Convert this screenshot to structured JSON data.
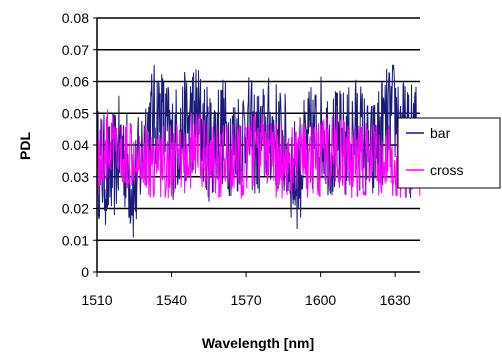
{
  "chart_data": {
    "type": "line",
    "title": "",
    "xlabel": "Wavelength [nm]",
    "ylabel": "PDL",
    "xlim": [
      1510,
      1640
    ],
    "ylim": [
      0,
      0.08
    ],
    "x_ticks": [
      "1510",
      "1540",
      "1570",
      "1600",
      "1630"
    ],
    "y_ticks": [
      "0",
      "0.01",
      "0.02",
      "0.03",
      "0.04",
      "0.05",
      "0.06",
      "0.07",
      "0.08"
    ],
    "grid": "horizontal",
    "legend_position": "right",
    "series": [
      {
        "name": "bar",
        "color": "#1a1a7a",
        "x": [
          1510,
          1515,
          1520,
          1525,
          1530,
          1535,
          1540,
          1545,
          1550,
          1555,
          1560,
          1565,
          1570,
          1575,
          1580,
          1585,
          1590,
          1595,
          1600,
          1605,
          1610,
          1615,
          1620,
          1625,
          1630,
          1635,
          1640
        ],
        "y": [
          0.035,
          0.03,
          0.04,
          0.025,
          0.045,
          0.05,
          0.04,
          0.045,
          0.05,
          0.04,
          0.045,
          0.04,
          0.045,
          0.04,
          0.045,
          0.04,
          0.03,
          0.04,
          0.045,
          0.04,
          0.04,
          0.045,
          0.035,
          0.045,
          0.05,
          0.04,
          0.045
        ]
      },
      {
        "name": "cross",
        "color": "#ff00ff",
        "x": [
          1510,
          1515,
          1520,
          1525,
          1530,
          1535,
          1540,
          1545,
          1550,
          1555,
          1560,
          1565,
          1570,
          1575,
          1580,
          1585,
          1590,
          1595,
          1600,
          1605,
          1610,
          1615,
          1620,
          1625,
          1630,
          1635,
          1640
        ],
        "y": [
          0.035,
          0.04,
          0.035,
          0.04,
          0.035,
          0.035,
          0.035,
          0.035,
          0.04,
          0.035,
          0.035,
          0.035,
          0.035,
          0.04,
          0.035,
          0.035,
          0.035,
          0.035,
          0.035,
          0.04,
          0.035,
          0.035,
          0.035,
          0.035,
          0.035,
          0.035,
          0.035
        ]
      }
    ]
  }
}
